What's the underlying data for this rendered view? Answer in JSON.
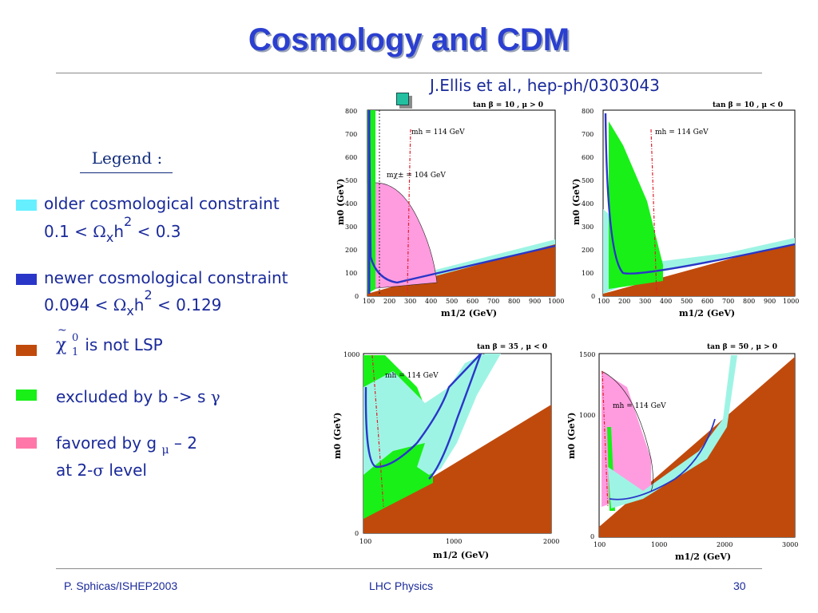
{
  "slide": {
    "title": "Cosmology and CDM",
    "citation": "J.Ellis et al., hep-ph/0303043"
  },
  "legend": {
    "title": "Legend :",
    "items": [
      {
        "color": "#66f0ff",
        "line1": "older cosmological constraint",
        "line2_pre": "0.1 < ",
        "omega": "Ω",
        "sub": "x",
        "h": "h",
        "sup": "2",
        "line2_post": " < 0.3"
      },
      {
        "color": "#2a36c8",
        "line1": "newer cosmological constraint",
        "line2_pre": "0.094 < ",
        "omega": "Ω",
        "sub": "x",
        "h": "h",
        "sup": "2",
        "line2_post": " < 0.129"
      },
      {
        "color": "#c04a0c",
        "chi": "χ",
        "tilde": "~",
        "sup": "0",
        "sub": "1",
        "text": " is not LSP"
      },
      {
        "color": "#18f018",
        "text": "excluded by b -> s ",
        "gamma": "γ"
      },
      {
        "color": "#ff77a8",
        "text": "favored by g ",
        "mu": "μ",
        "text2": " – 2",
        "line2_pre": "at 2-",
        "sigma": "σ",
        "line2_post": " level"
      }
    ]
  },
  "plots": [
    {
      "label": "tan β = 10 ,  μ > 0",
      "ylabel": "m0 (GeV)",
      "xlabel": "m1/2 (GeV)",
      "yticks": [
        "0",
        "100",
        "200",
        "300",
        "400",
        "500",
        "600",
        "700",
        "800"
      ],
      "xticks": [
        "100",
        "200",
        "300",
        "400",
        "500",
        "600",
        "700",
        "800",
        "900",
        "1000"
      ],
      "annotations": [
        "mh = 114 GeV",
        "mχ± = 104 GeV"
      ]
    },
    {
      "label": "tan β = 10 ,  μ < 0",
      "ylabel": "m0 (GeV)",
      "xlabel": "m1/2 (GeV)",
      "yticks": [
        "0",
        "100",
        "200",
        "300",
        "400",
        "500",
        "600",
        "700",
        "800"
      ],
      "xticks": [
        "100",
        "200",
        "300",
        "400",
        "500",
        "600",
        "700",
        "800",
        "900",
        "1000"
      ],
      "annotations": [
        "mh = 114 GeV"
      ]
    },
    {
      "label": "tan β = 35 ,  μ < 0",
      "ylabel": "m0 (GeV)",
      "xlabel": "m1/2 (GeV)",
      "yticks": [
        "0",
        "1000"
      ],
      "xticks": [
        "100",
        "1000",
        "2000"
      ],
      "annotations": [
        "mh = 114 GeV"
      ]
    },
    {
      "label": "tan β = 50 ,  μ > 0",
      "ylabel": "m0 (GeV)",
      "xlabel": "m1/2 (GeV)",
      "yticks": [
        "0",
        "1000",
        "1500"
      ],
      "xticks": [
        "100",
        "1000",
        "2000",
        "3000"
      ],
      "annotations": [
        "mh = 114 GeV"
      ]
    }
  ],
  "footer": {
    "left": "P. Sphicas/ISHEP2003",
    "center": "LHC Physics",
    "right": "30"
  }
}
